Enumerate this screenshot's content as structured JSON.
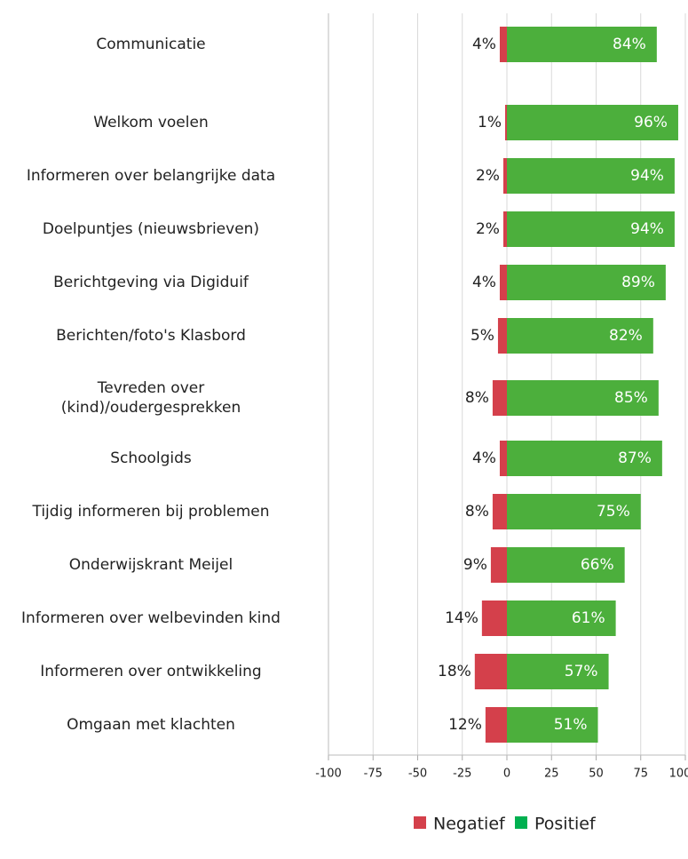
{
  "chart_data": {
    "type": "diverging-bar",
    "categories": [
      "Communicatie",
      "Welkom voelen",
      "Informeren over belangrijke data",
      "Doelpuntjes (nieuwsbrieven)",
      "Berichtgeving via Digiduif",
      "Berichten/foto's Klasbord",
      "Tevreden over (kind)/oudergesprekken",
      "Schoolgids",
      "Tijdig informeren bij problemen",
      "Onderwijskrant Meijel",
      "Informeren over welbevinden kind",
      "Informeren over ontwikkeling",
      "Omgaan met klachten"
    ],
    "series": [
      {
        "name": "Negatief",
        "color": "#d4404b",
        "values": [
          -4,
          -1,
          -2,
          -2,
          -4,
          -5,
          -8,
          -4,
          -8,
          -9,
          -14,
          -18,
          -12
        ],
        "value_labels": [
          "4%",
          "1%",
          "2%",
          "2%",
          "4%",
          "5%",
          "8%",
          "4%",
          "8%",
          "9%",
          "14%",
          "18%",
          "12%"
        ]
      },
      {
        "name": "Positief",
        "color": "#4caf3c",
        "values": [
          84,
          96,
          94,
          94,
          89,
          82,
          85,
          87,
          75,
          66,
          61,
          57,
          51
        ],
        "value_labels": [
          "84%",
          "96%",
          "94%",
          "94%",
          "89%",
          "82%",
          "85%",
          "87%",
          "75%",
          "66%",
          "61%",
          "57%",
          "51%"
        ]
      }
    ],
    "legend_colors": [
      "#d4404b",
      "#00b050"
    ],
    "xlim": [
      -100,
      100
    ],
    "xticks": [
      -100,
      -75,
      -50,
      -25,
      0,
      25,
      50,
      75,
      100
    ],
    "grid": true
  }
}
